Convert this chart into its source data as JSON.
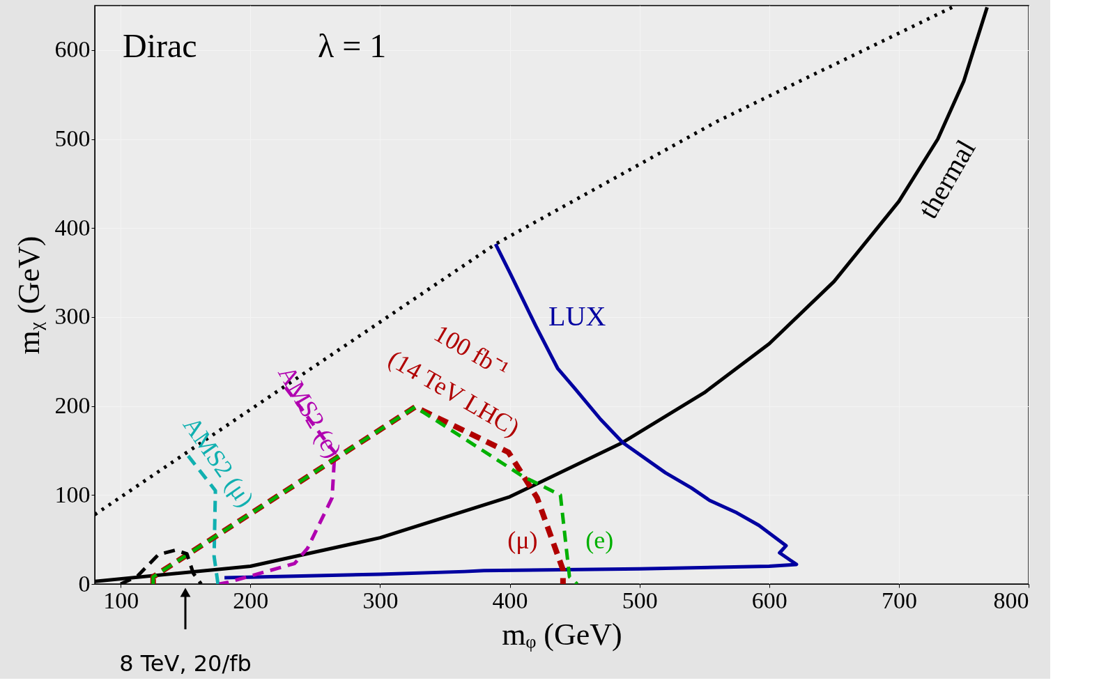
{
  "chart_data": {
    "type": "line",
    "xlabel": "mᵩ (GeV)",
    "ylabel": "mᵪ (GeV)",
    "xlim": [
      80,
      800
    ],
    "ylim": [
      0,
      650
    ],
    "xticks": [
      100,
      200,
      300,
      400,
      500,
      600,
      700,
      800
    ],
    "yticks": [
      0,
      100,
      200,
      300,
      400,
      500,
      600
    ],
    "grid": true,
    "marker": "none",
    "series": [
      {
        "color": "#000000",
        "line_style": "dotted",
        "x": [
          80,
          389,
          560,
          741
        ],
        "values": [
          78,
          382,
          520,
          648
        ]
      },
      {
        "name": "thermal",
        "color": "#000000",
        "line_style": "solid",
        "x": [
          80,
          200,
          300,
          400,
          487,
          550,
          600,
          650,
          700,
          730,
          750,
          768
        ],
        "values": [
          3,
          20,
          52,
          98,
          159,
          215,
          270,
          340,
          430,
          500,
          565,
          648
        ]
      },
      {
        "name": "LUX",
        "color": "#0000a0",
        "line_style": "solid",
        "x": [
          389,
          400,
          410,
          420,
          437,
          450,
          470,
          487,
          520,
          540,
          554,
          575,
          592,
          613,
          608,
          616,
          621,
          600,
          500,
          380,
          365,
          300,
          180
        ],
        "values": [
          382,
          350,
          320,
          290,
          242,
          220,
          185,
          159,
          125,
          108,
          94,
          80,
          66,
          43,
          35,
          27,
          22,
          20,
          17,
          15,
          14,
          11,
          7
        ]
      },
      {
        "name": "AMS2 (μ)",
        "color": "#10b0b0",
        "line_style": "dashed",
        "x": [
          152,
          173,
          172,
          175
        ],
        "values": [
          144,
          105,
          31,
          0
        ]
      },
      {
        "name": "AMS2 (e)",
        "color": "#b000b0",
        "line_style": "dashed",
        "x": [
          227,
          261,
          265,
          263,
          244,
          234,
          183,
          176
        ],
        "values": [
          221,
          155,
          148,
          97,
          40,
          23,
          2,
          0
        ]
      },
      {
        "name": "(μ)",
        "color": "#b00000",
        "line_style": "dashed",
        "x": [
          125,
          125,
          327,
          399,
          421,
          441,
          441
        ],
        "values": [
          0,
          8,
          199,
          148,
          97,
          16,
          0
        ]
      },
      {
        "name": "(e)",
        "color": "#00b000",
        "line_style": "dashed",
        "x": [
          125,
          125,
          327,
          410,
          439,
          446,
          452
        ],
        "values": [
          0,
          8,
          199,
          121,
          100,
          8,
          0
        ]
      },
      {
        "color": "#000000",
        "line_style": "dashed",
        "x": [
          100,
          113,
          129,
          142,
          151,
          156,
          162
        ],
        "values": [
          0,
          9,
          33,
          38,
          34,
          12,
          0
        ]
      }
    ],
    "annotations": [
      "Dirac",
      "λ = 1",
      "100 fb⁻¹",
      "(14 TeV LHC)",
      "8 TeV, 20/fb"
    ]
  }
}
